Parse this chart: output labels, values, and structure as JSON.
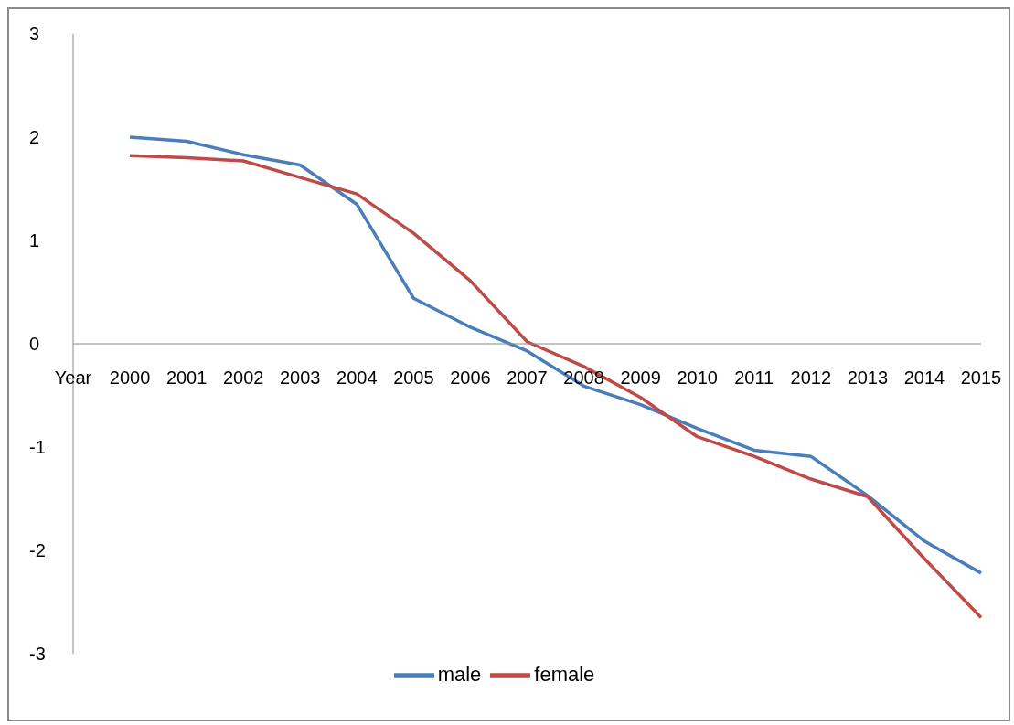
{
  "chart_data": {
    "type": "line",
    "categories": [
      "Year",
      "2000",
      "2001",
      "2002",
      "2003",
      "2004",
      "2005",
      "2006",
      "2007",
      "2008",
      "2009",
      "2010",
      "2011",
      "2012",
      "2013",
      "2014",
      "2015"
    ],
    "series": [
      {
        "name": "male",
        "color": "#4a7ebb",
        "values": [
          null,
          2.0,
          1.96,
          1.83,
          1.73,
          1.35,
          0.44,
          0.16,
          -0.07,
          -0.41,
          -0.59,
          -0.82,
          -1.03,
          -1.09,
          -1.47,
          -1.91,
          -2.22
        ]
      },
      {
        "name": "female",
        "color": "#be4b48",
        "values": [
          null,
          1.82,
          1.8,
          1.77,
          1.61,
          1.45,
          1.07,
          0.61,
          0.02,
          -0.22,
          -0.52,
          -0.9,
          -1.09,
          -1.31,
          -1.48,
          -2.08,
          -2.65
        ]
      }
    ],
    "ylim": [
      -3,
      3
    ],
    "yticks": [
      -3,
      -2,
      -1,
      0,
      1,
      2,
      3
    ],
    "grid": false,
    "legend": "bottom",
    "marker": "none",
    "line_style": "solid"
  }
}
